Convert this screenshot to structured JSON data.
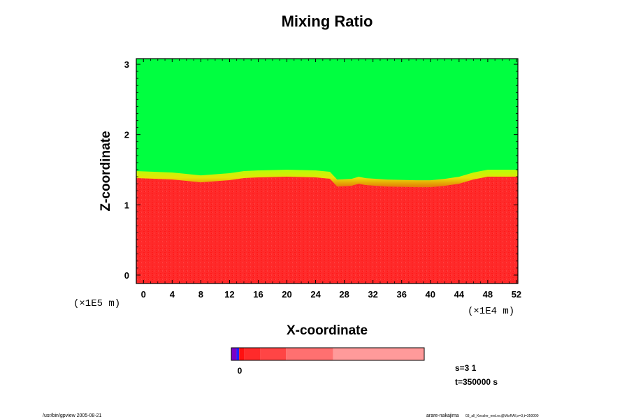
{
  "chart_data": {
    "type": "heatmap",
    "title": "Mixing Ratio",
    "xlabel": "X-coordinate",
    "ylabel": "Z-coordinate",
    "x_unit": "(×1E4 m)",
    "y_unit": "(×1E5 m)",
    "xlim": [
      -1,
      52.2
    ],
    "ylim": [
      -0.12,
      3.08
    ],
    "x_ticks": [
      0,
      4,
      8,
      12,
      16,
      20,
      24,
      28,
      32,
      36,
      40,
      44,
      48,
      52
    ],
    "y_ticks": [
      0,
      1,
      2,
      3
    ],
    "x_tick_labels": [
      "0",
      "4",
      "8",
      "12",
      "16",
      "20",
      "24",
      "28",
      "32",
      "36",
      "40",
      "44",
      "48",
      "52"
    ],
    "y_tick_labels": [
      "0",
      "1",
      "2",
      "3"
    ],
    "regions": [
      {
        "name": "upper",
        "color": "#00ff40",
        "z_from": 1.45,
        "z_to": 3.08
      },
      {
        "name": "lower",
        "color": "#ff2a2a",
        "z_from": -0.12,
        "z_to": 1.45
      }
    ],
    "interface_profile": {
      "x": [
        -1,
        4,
        8,
        12,
        14,
        16,
        20,
        24,
        26,
        27,
        29,
        30,
        31,
        34,
        38,
        40,
        42,
        44,
        46,
        48,
        50,
        52.2
      ],
      "z": [
        1.44,
        1.42,
        1.38,
        1.41,
        1.44,
        1.45,
        1.46,
        1.45,
        1.43,
        1.32,
        1.33,
        1.36,
        1.34,
        1.32,
        1.31,
        1.31,
        1.33,
        1.36,
        1.42,
        1.46,
        1.46,
        1.46
      ]
    },
    "colorbar": {
      "segments": [
        {
          "color": "#7a00c8",
          "weight": 2
        },
        {
          "color": "#2020ff",
          "weight": 1
        },
        {
          "color": "#ff1010",
          "weight": 2
        },
        {
          "color": "#ff2a2a",
          "weight": 6
        },
        {
          "color": "#ff4545",
          "weight": 10
        },
        {
          "color": "#ff7070",
          "weight": 18
        },
        {
          "color": "#ff9a9a",
          "weight": 35
        }
      ],
      "labels": [
        "0"
      ]
    }
  },
  "info": {
    "s": "s=3 1",
    "t": "t=350000 s"
  },
  "footer": {
    "left": "/usr/bin/gpview 2005-08-21",
    "right_main": "arare-nakajima",
    "right_sub": "03_all_Kessler_end.nc@MixRAll,x=3,t=350000"
  }
}
